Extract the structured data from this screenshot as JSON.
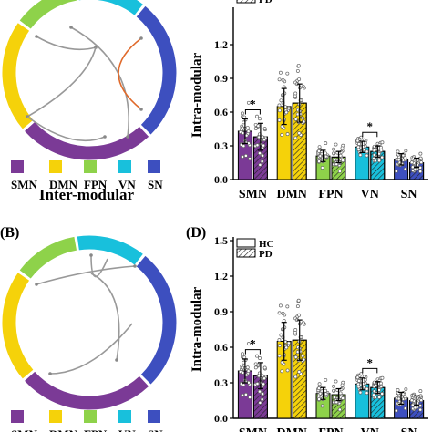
{
  "colors": {
    "SMN": "#7b3a96",
    "DMN": "#f5d20a",
    "FPN": "#8ed24a",
    "VN": "#18c0dc",
    "SN": "#3d4fbf",
    "edge": "#999999",
    "edge_highlight": "#e06a2b"
  },
  "panels": {
    "top_left": {
      "x_label": "Inter-modular",
      "legend": [
        "SMN",
        "DMN",
        "FPN",
        "VN",
        "SN"
      ]
    },
    "bottom_left": {
      "panel_letter": "(B)",
      "legend": [
        "SMN",
        "DMN",
        "FPN",
        "VN",
        "SN"
      ]
    },
    "bottom_right": {
      "panel_letter": "(D)"
    }
  },
  "chart_data": [
    {
      "type": "bar",
      "panel": "top-right",
      "ylabel": "Intra-modular",
      "ylim": [
        0,
        1.5
      ],
      "yticks": [
        "0.0",
        "0.3",
        "0.6",
        "0.9",
        "1.2"
      ],
      "categories": [
        "SMN",
        "DMN",
        "FPN",
        "VN",
        "SN"
      ],
      "legend": [
        "PD"
      ],
      "series": [
        {
          "name": "HC",
          "values": [
            0.43,
            0.65,
            0.21,
            0.29,
            0.18
          ],
          "sd": [
            0.11,
            0.16,
            0.05,
            0.05,
            0.05
          ]
        },
        {
          "name": "PD",
          "values": [
            0.38,
            0.68,
            0.2,
            0.25,
            0.15
          ],
          "sd": [
            0.12,
            0.17,
            0.05,
            0.05,
            0.04
          ]
        }
      ],
      "significance": [
        {
          "category": "SMN",
          "label": "*"
        },
        {
          "category": "VN",
          "label": "*"
        }
      ]
    },
    {
      "type": "bar",
      "panel": "bottom-right",
      "ylabel": "Intra-modular",
      "ylim": [
        0,
        1.5
      ],
      "yticks": [
        "0.0",
        "0.3",
        "0.6",
        "0.9",
        "1.2",
        "1.5"
      ],
      "categories": [
        "SMN",
        "DMN",
        "FPN",
        "VN",
        "SN"
      ],
      "legend": [
        "HC",
        "PD"
      ],
      "series": [
        {
          "name": "HC",
          "values": [
            0.4,
            0.65,
            0.21,
            0.29,
            0.17
          ],
          "sd": [
            0.1,
            0.16,
            0.05,
            0.05,
            0.05
          ]
        },
        {
          "name": "PD",
          "values": [
            0.36,
            0.66,
            0.2,
            0.26,
            0.15
          ],
          "sd": [
            0.11,
            0.17,
            0.05,
            0.05,
            0.04
          ]
        }
      ],
      "significance": [
        {
          "category": "SMN",
          "label": "*"
        },
        {
          "category": "VN",
          "label": "*"
        }
      ]
    }
  ]
}
